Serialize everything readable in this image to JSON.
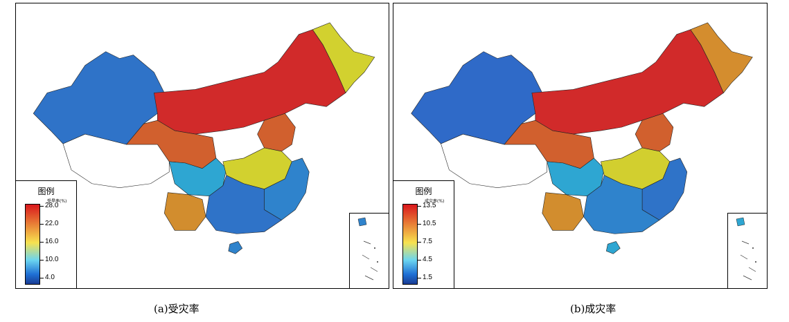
{
  "panels": [
    {
      "caption": "(a)受灾率",
      "legend": {
        "title": "图例",
        "unit": "受旱率(%)",
        "ticks": [
          "28.0",
          "22.0",
          "16.0",
          "10.0",
          "4.0"
        ]
      },
      "colors": {
        "xinjiang": "#2f73c8",
        "inner": "#d12a2a",
        "northeast": "#d2d12f",
        "qinghai": "#d1602e",
        "sichuan": "#2ea6d2",
        "yunnan": "#d28d2e",
        "central": "#d2d12f",
        "southeast": "#2f83cc",
        "south": "#2f73c8",
        "hebei": "#d1602e",
        "hainan": "#2f83cc"
      }
    },
    {
      "caption": "(b)成灾率",
      "legend": {
        "title": "图例",
        "unit": "成灾率(%)",
        "ticks": [
          "13.5",
          "10.5",
          "7.5",
          "4.5",
          "1.5"
        ]
      },
      "colors": {
        "xinjiang": "#2f6ac8",
        "inner": "#d12a2a",
        "northeast": "#d48d2e",
        "qinghai": "#d1602e",
        "sichuan": "#2ea6d2",
        "yunnan": "#d28d2e",
        "central": "#d2cf2f",
        "southeast": "#2f73c8",
        "south": "#2f83cc",
        "hebei": "#d1602e",
        "hainan": "#2ea6d2"
      }
    }
  ]
}
